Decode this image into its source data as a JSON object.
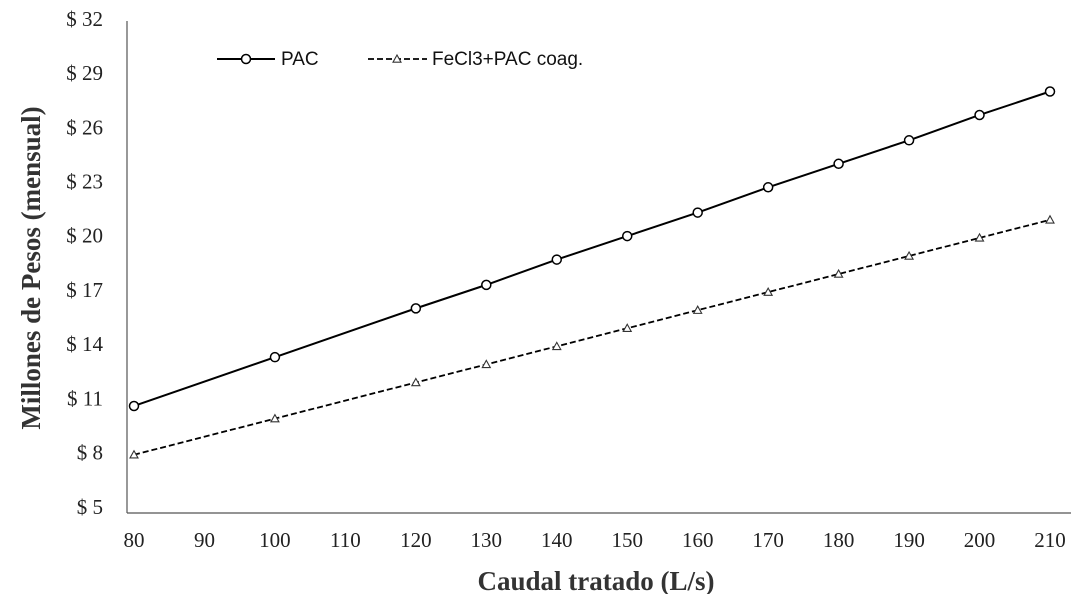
{
  "chart_data": {
    "type": "line",
    "x": [
      80,
      100,
      120,
      130,
      140,
      150,
      160,
      170,
      180,
      190,
      200,
      210
    ],
    "x_tick_labels": [
      "80",
      "90",
      "100",
      "110",
      "120",
      "130",
      "140",
      "150",
      "160",
      "170",
      "180",
      "190",
      "200",
      "210"
    ],
    "y_tick_labels": [
      "$ 5",
      "$ 8",
      "$ 11",
      "$ 14",
      "$ 17",
      "$ 20",
      "$ 23",
      "$ 26",
      "$ 29",
      "$ 32"
    ],
    "series": [
      {
        "name": "PAC",
        "values": [
          10.7,
          13.4,
          16.1,
          17.4,
          18.8,
          20.1,
          21.4,
          22.8,
          24.1,
          25.4,
          26.8,
          28.1
        ],
        "marker": "circle",
        "line": "solid"
      },
      {
        "name": "FeCl3+PAC coag.",
        "values": [
          8.0,
          10.0,
          12.0,
          13.0,
          14.0,
          15.0,
          16.0,
          17.0,
          18.0,
          19.0,
          20.0,
          21.0
        ],
        "marker": "triangle",
        "line": "dashed"
      }
    ],
    "title": "",
    "xlabel": "Caudal tratado (L/s)",
    "ylabel": "Millones de Pesos (mensual)",
    "ylim": [
      5,
      32
    ],
    "grid": false,
    "legend_position": "top-left"
  }
}
